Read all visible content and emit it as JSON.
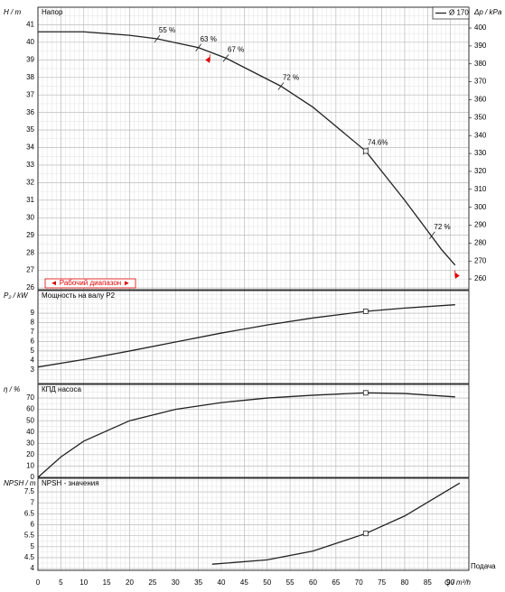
{
  "chart_data": [
    {
      "type": "line",
      "title": "Напор",
      "ylabel": "H / m",
      "y2label": "Δp / kPa",
      "x": [
        0,
        10,
        20,
        26,
        35,
        41,
        53,
        60,
        71.5,
        80,
        88,
        91
      ],
      "series": [
        {
          "name": "Ø 170",
          "color": "#222222",
          "values": [
            40.6,
            40.6,
            40.4,
            40.2,
            39.7,
            39.1,
            37.5,
            36.3,
            33.8,
            31.0,
            28.2,
            27.3
          ]
        }
      ],
      "xlim": [
        0,
        94
      ],
      "xticks": [
        0,
        5,
        10,
        15,
        20,
        25,
        30,
        35,
        40,
        45,
        50,
        55,
        60,
        65,
        70,
        75,
        80,
        85,
        90
      ],
      "ylim": [
        25.9,
        42
      ],
      "yticks": [
        26,
        27,
        28,
        29,
        30,
        31,
        32,
        33,
        34,
        35,
        36,
        37,
        38,
        39,
        40,
        41
      ],
      "y2lim": [
        254,
        411.6
      ],
      "y2ticks": [
        260,
        270,
        280,
        290,
        300,
        310,
        320,
        330,
        340,
        350,
        360,
        370,
        380,
        390,
        400
      ],
      "annotations": [
        {
          "x": 26,
          "y": 40.2,
          "label": "55 %"
        },
        {
          "x": 35,
          "y": 39.7,
          "label": "63 %"
        },
        {
          "x": 41,
          "y": 39.1,
          "label": "67 %"
        },
        {
          "x": 53,
          "y": 37.5,
          "label": "72 %"
        },
        {
          "x": 71.5,
          "y": 33.8,
          "label": "74.6%"
        },
        {
          "x": 86,
          "y": 29.0,
          "label": "72 %"
        }
      ],
      "duty_point": {
        "x": 71.5,
        "y": 33.8
      },
      "range_markers": [
        {
          "x": 37.5,
          "y": 39.0
        },
        {
          "x": 91,
          "y": 26.7
        }
      ],
      "range_label": "◄ Рабочий диапазон ►",
      "range_color": "#e00000",
      "legend": "upper right",
      "grid": true
    },
    {
      "type": "line",
      "title": "Мощность на валу P2",
      "ylabel": "P₂ / kW",
      "x": [
        0,
        10,
        20,
        30,
        40,
        50,
        60,
        71.5,
        80,
        91
      ],
      "series": [
        {
          "color": "#222222",
          "values": [
            3.3,
            4.1,
            5.0,
            5.95,
            6.9,
            7.75,
            8.5,
            9.2,
            9.55,
            9.9
          ]
        }
      ],
      "xlim": [
        0,
        94
      ],
      "xticks": [
        0,
        5,
        10,
        15,
        20,
        25,
        30,
        35,
        40,
        45,
        50,
        55,
        60,
        65,
        70,
        75,
        80,
        85,
        90
      ],
      "ylim": [
        1.55,
        11.4
      ],
      "yticks": [
        3,
        4,
        5,
        6,
        7,
        8,
        9
      ],
      "duty_point": {
        "x": 71.5,
        "y": 9.2
      },
      "grid": true
    },
    {
      "type": "line",
      "title": "КПД насоса",
      "ylabel": "η / %",
      "x": [
        0,
        5,
        10,
        20,
        30,
        40,
        50,
        60,
        71.5,
        80,
        91
      ],
      "series": [
        {
          "color": "#222222",
          "values": [
            0,
            18,
            32,
            50,
            60,
            66,
            70,
            72.5,
            74.6,
            74,
            71
          ]
        }
      ],
      "xlim": [
        0,
        94
      ],
      "xticks": [
        0,
        5,
        10,
        15,
        20,
        25,
        30,
        35,
        40,
        45,
        50,
        55,
        60,
        65,
        70,
        75,
        80,
        85,
        90
      ],
      "ylim": [
        0,
        82
      ],
      "yticks": [
        0,
        10,
        20,
        30,
        40,
        50,
        60,
        70
      ],
      "duty_point": {
        "x": 71.5,
        "y": 74.6
      },
      "grid": true
    },
    {
      "type": "line",
      "title": "NPSH - значения",
      "ylabel": "NPSH / m",
      "xlabel": "Q / m³/h",
      "xcaption": "Подача",
      "x": [
        38,
        50,
        60,
        71.5,
        80,
        92
      ],
      "series": [
        {
          "color": "#222222",
          "values": [
            4.2,
            4.4,
            4.8,
            5.6,
            6.4,
            7.9
          ]
        }
      ],
      "xlim": [
        0,
        94
      ],
      "xticks": [
        0,
        5,
        10,
        15,
        20,
        25,
        30,
        35,
        40,
        45,
        50,
        55,
        60,
        65,
        70,
        75,
        80,
        85,
        90
      ],
      "ylim": [
        3.92,
        8.12
      ],
      "yticks": [
        4,
        4.5,
        5,
        5.5,
        6,
        6.5,
        7,
        7.5
      ],
      "duty_point": {
        "x": 71.5,
        "y": 5.6
      },
      "grid": true
    }
  ]
}
